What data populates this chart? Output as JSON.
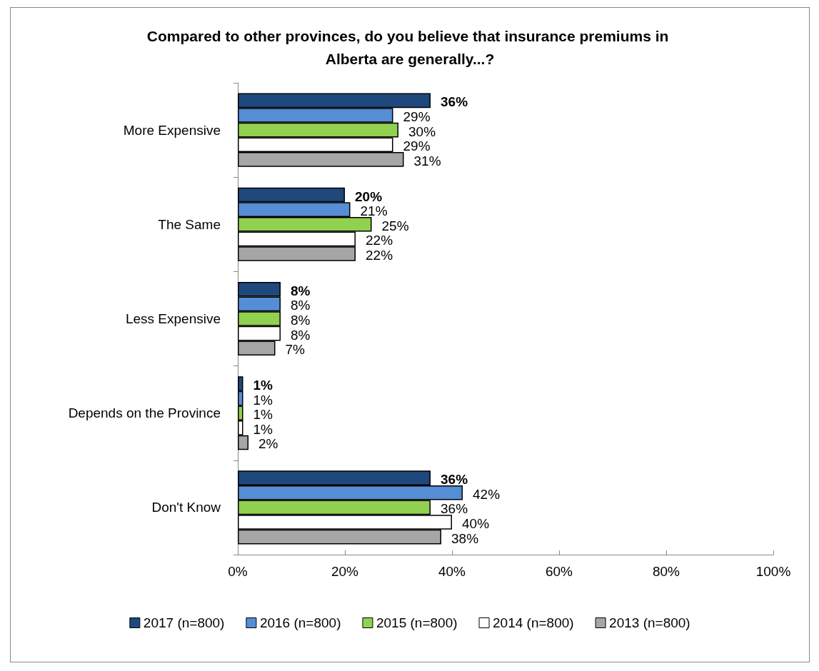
{
  "chart_data": {
    "type": "bar",
    "orientation": "horizontal",
    "title": "Compared to other provinces, do you believe that insurance premiums in Alberta are generally...?",
    "categories": [
      "More Expensive",
      "The Same",
      "Less Expensive",
      "Depends on the Province",
      "Don't Know"
    ],
    "series": [
      {
        "name": "2017 (n=800)",
        "color": "#1f497d",
        "values": [
          36,
          20,
          8,
          1,
          36
        ],
        "value_labels": [
          "36%",
          "20%",
          "8%",
          "1%",
          "36%"
        ]
      },
      {
        "name": "2016 (n=800)",
        "color": "#558ed5",
        "values": [
          29,
          21,
          8,
          1,
          42
        ],
        "value_labels": [
          "29%",
          "21%",
          "8%",
          "1%",
          "42%"
        ]
      },
      {
        "name": "2015 (n=800)",
        "color": "#92d050",
        "values": [
          30,
          25,
          8,
          1,
          36
        ],
        "value_labels": [
          "30%",
          "25%",
          "8%",
          "1%",
          "36%"
        ]
      },
      {
        "name": "2014 (n=800)",
        "color": "#ffffff",
        "values": [
          29,
          22,
          8,
          1,
          40
        ],
        "value_labels": [
          "29%",
          "22%",
          "8%",
          "1%",
          "40%"
        ]
      },
      {
        "name": "2013 (n=800)",
        "color": "#a6a6a6",
        "values": [
          31,
          22,
          7,
          2,
          38
        ],
        "value_labels": [
          "31%",
          "22%",
          "7%",
          "2%",
          "38%"
        ]
      }
    ],
    "xlim": [
      0,
      100
    ],
    "xticks": [
      {
        "value": 0,
        "label": "0%"
      },
      {
        "value": 20,
        "label": "20%"
      },
      {
        "value": 40,
        "label": "40%"
      },
      {
        "value": 60,
        "label": "60%"
      },
      {
        "value": 80,
        "label": "80%"
      },
      {
        "value": 100,
        "label": "100%"
      }
    ],
    "grid": false,
    "legend": "bottom"
  }
}
